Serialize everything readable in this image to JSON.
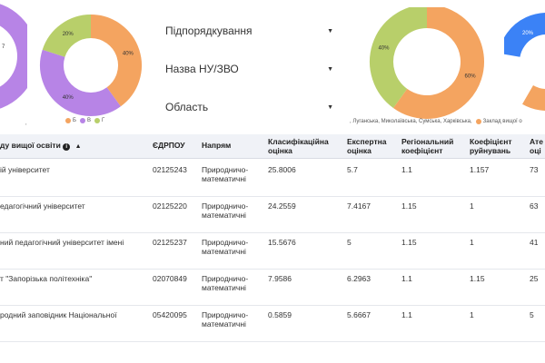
{
  "filters": {
    "subordination": "Підпорядкування",
    "institution": "Назва НУ/ЗВО",
    "region": "Область"
  },
  "donut1": {
    "label_left": "7",
    "legend": [
      "Б",
      "В",
      "Г"
    ]
  },
  "donut2": {
    "slices": [
      {
        "label": "40%",
        "value": 40,
        "color": "#f4a460"
      },
      {
        "label": "40%",
        "value": 40,
        "color": "#b784e6"
      },
      {
        "label": "20%",
        "value": 20,
        "color": "#b8cf6a"
      }
    ],
    "legend": [
      {
        "label": "Б",
        "color": "#f4a460"
      },
      {
        "label": "В",
        "color": "#b784e6"
      },
      {
        "label": "Г",
        "color": "#b8cf6a"
      }
    ]
  },
  "donut3": {
    "slices": [
      {
        "label": "60%",
        "value": 60,
        "color": "#f4a460"
      },
      {
        "label": "40%",
        "value": 40,
        "color": "#b8cf6a"
      }
    ],
    "legend_text": ", Луганська, Миколаївська, Сумська, Харківська,",
    "legend_item": "Заклад вищої о",
    "legend_color": "#f4a460"
  },
  "donut4": {
    "label": "20%",
    "colors": [
      "#3b82f6",
      "#f4a460"
    ]
  },
  "tick_mark": "'",
  "table": {
    "headers": {
      "name": "ду вищої освіти",
      "edrpou": "ЄДРПОУ",
      "direction": "Напрям",
      "classification": "Класифікаційна оцінка",
      "expert": "Експертна оцінка",
      "regional": "Регіональний коефіцієнт",
      "ruin": "Коефіцієнт руйнувань",
      "att": "Ате оці"
    },
    "rows": [
      {
        "name": "ій університет",
        "edrpou": "02125243",
        "direction": "Природничо-математичні",
        "classification": "25.8006",
        "expert": "5.7",
        "regional": "1.1",
        "ruin": "1.157",
        "att": "73"
      },
      {
        "name": "едагогічний університет",
        "edrpou": "02125220",
        "direction": "Природничо-математичні",
        "classification": "24.2559",
        "expert": "7.4167",
        "regional": "1.15",
        "ruin": "1",
        "att": "63"
      },
      {
        "name": "ний педагогічний університет імені",
        "edrpou": "02125237",
        "direction": "Природничо-математичні",
        "classification": "15.5676",
        "expert": "5",
        "regional": "1.15",
        "ruin": "1",
        "att": "41"
      },
      {
        "name": "т \"Запорізька політехніка\"",
        "edrpou": "02070849",
        "direction": "Природничо-математичні",
        "classification": "7.9586",
        "expert": "6.2963",
        "regional": "1.1",
        "ruin": "1.15",
        "att": "25"
      },
      {
        "name": "родний заповідник Національної",
        "edrpou": "05420095",
        "direction": "Природничо-математичні",
        "classification": "0.5859",
        "expert": "5.6667",
        "regional": "1.1",
        "ruin": "1",
        "att": "5"
      }
    ]
  }
}
